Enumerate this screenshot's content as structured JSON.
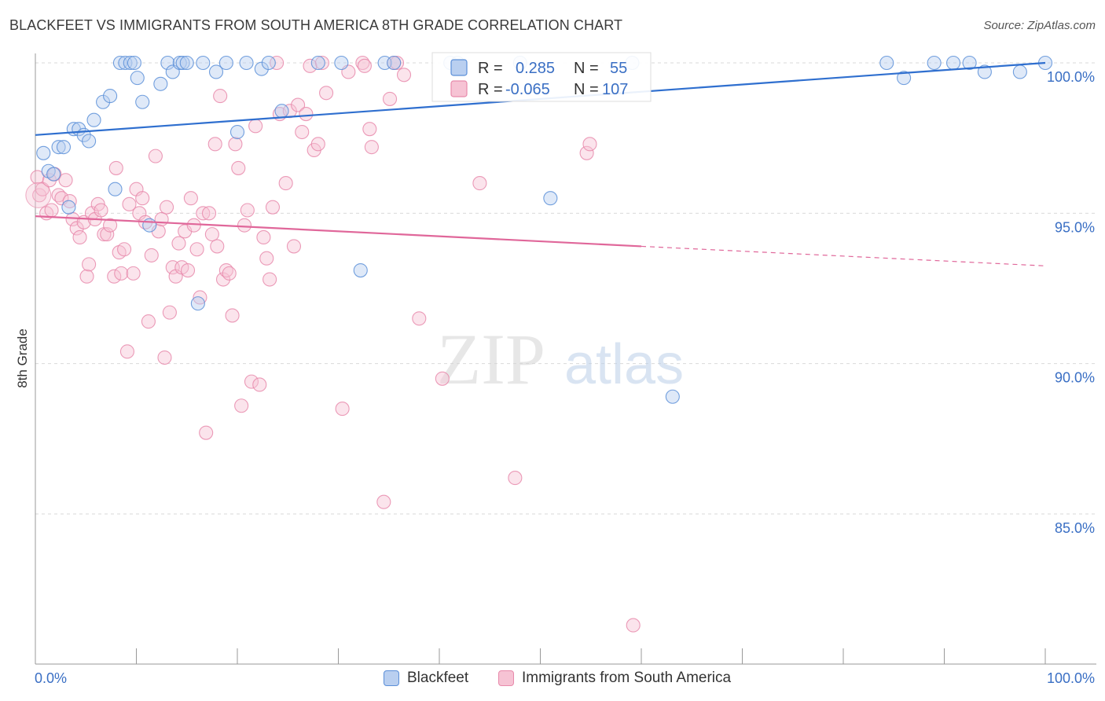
{
  "header": {
    "title": "BLACKFEET VS IMMIGRANTS FROM SOUTH AMERICA 8TH GRADE CORRELATION CHART",
    "source": "Source: ZipAtlas.com"
  },
  "watermark": {
    "zip": "ZIP",
    "atlas": "atlas"
  },
  "colors": {
    "blue": "#5b8fd8",
    "blue_fill": "#b9cff0",
    "blue_line": "#2f6fcf",
    "pink": "#e88aab",
    "pink_fill": "#f6c3d4",
    "pink_line": "#e0679a",
    "tick_label": "#3a6fc4",
    "grid": "#d9d9d9"
  },
  "legend_inline": {
    "rows": [
      {
        "r_label": "R = ",
        "r_value": "0.285",
        "n_label": "N = ",
        "n_value": "55"
      },
      {
        "r_label": "R = ",
        "r_value": "-0.065",
        "n_label": "N = ",
        "n_value": "107"
      }
    ]
  },
  "chart_data": {
    "type": "scatter",
    "title": "BLACKFEET VS IMMIGRANTS FROM SOUTH AMERICA 8TH GRADE CORRELATION CHART",
    "xlabel": "",
    "ylabel": "8th Grade",
    "xlim": [
      0,
      100
    ],
    "ylim": [
      80.5,
      100.7
    ],
    "x_tick_labels": [
      "0.0%",
      "100.0%"
    ],
    "y_ticks": [
      85,
      90,
      95,
      100
    ],
    "y_tick_labels": [
      "85.0%",
      "90.0%",
      "95.0%",
      "100.0%"
    ],
    "grid": true,
    "series": [
      {
        "name": "Blackfeet",
        "r": 0.285,
        "n": 55,
        "trend": {
          "x0": 0,
          "y0": 97.6,
          "x1": 100,
          "y1": 100.0
        },
        "points": [
          [
            0.8,
            97.0
          ],
          [
            1.3,
            96.4
          ],
          [
            1.8,
            96.3
          ],
          [
            2.3,
            97.2
          ],
          [
            2.8,
            97.2
          ],
          [
            3.3,
            95.2
          ],
          [
            3.8,
            97.8
          ],
          [
            4.3,
            97.8
          ],
          [
            4.8,
            97.6
          ],
          [
            5.3,
            97.4
          ],
          [
            5.8,
            98.1
          ],
          [
            6.7,
            98.7
          ],
          [
            7.4,
            98.9
          ],
          [
            7.9,
            95.8
          ],
          [
            8.4,
            100.0
          ],
          [
            8.9,
            100.0
          ],
          [
            9.4,
            100.0
          ],
          [
            10.1,
            99.5
          ],
          [
            10.6,
            98.7
          ],
          [
            11.3,
            94.6
          ],
          [
            9.8,
            100.0
          ],
          [
            12.4,
            99.3
          ],
          [
            13.1,
            100.0
          ],
          [
            13.6,
            99.7
          ],
          [
            14.3,
            100.0
          ],
          [
            14.6,
            100.0
          ],
          [
            15.0,
            100.0
          ],
          [
            16.1,
            92.0
          ],
          [
            16.6,
            100.0
          ],
          [
            17.9,
            99.7
          ],
          [
            18.9,
            100.0
          ],
          [
            20.0,
            97.7
          ],
          [
            20.9,
            100.0
          ],
          [
            22.4,
            99.8
          ],
          [
            23.1,
            100.0
          ],
          [
            24.4,
            98.4
          ],
          [
            28.0,
            100.0
          ],
          [
            30.3,
            100.0
          ],
          [
            32.2,
            93.1
          ],
          [
            34.6,
            100.0
          ],
          [
            35.5,
            100.0
          ],
          [
            41.1,
            100.0
          ],
          [
            41.8,
            100.0
          ],
          [
            48.0,
            100.0
          ],
          [
            51.0,
            95.5
          ],
          [
            59.1,
            100.0
          ],
          [
            63.1,
            88.9
          ],
          [
            84.3,
            100.0
          ],
          [
            86.0,
            99.5
          ],
          [
            89.0,
            100.0
          ],
          [
            90.9,
            100.0
          ],
          [
            92.5,
            100.0
          ],
          [
            94.0,
            99.7
          ],
          [
            97.5,
            99.7
          ],
          [
            100.0,
            100.0
          ]
        ]
      },
      {
        "name": "Immigrants from South America",
        "r": -0.065,
        "n": 107,
        "trend": {
          "x0": 0,
          "y0": 94.9,
          "x1": 60,
          "y1": 93.9,
          "dash_to_x": 100,
          "dash_to_y": 93.25
        },
        "points": [
          [
            0.2,
            96.2
          ],
          [
            0.4,
            95.6
          ],
          [
            0.7,
            95.8
          ],
          [
            1.1,
            95.0
          ],
          [
            1.4,
            96.1
          ],
          [
            1.6,
            95.1
          ],
          [
            1.9,
            96.3
          ],
          [
            2.3,
            95.6
          ],
          [
            2.6,
            95.5
          ],
          [
            3.0,
            96.1
          ],
          [
            3.4,
            95.4
          ],
          [
            3.7,
            94.8
          ],
          [
            4.1,
            94.5
          ],
          [
            4.4,
            94.2
          ],
          [
            4.8,
            94.7
          ],
          [
            5.1,
            92.9
          ],
          [
            5.3,
            93.3
          ],
          [
            5.6,
            95.0
          ],
          [
            5.9,
            94.8
          ],
          [
            6.2,
            95.3
          ],
          [
            6.5,
            95.1
          ],
          [
            6.8,
            94.3
          ],
          [
            7.1,
            94.3
          ],
          [
            7.4,
            94.6
          ],
          [
            7.8,
            92.9
          ],
          [
            8.0,
            96.5
          ],
          [
            8.3,
            93.7
          ],
          [
            8.5,
            93.0
          ],
          [
            8.8,
            93.8
          ],
          [
            9.1,
            90.4
          ],
          [
            9.3,
            95.3
          ],
          [
            9.7,
            93.0
          ],
          [
            10.0,
            95.8
          ],
          [
            10.3,
            95.0
          ],
          [
            10.6,
            95.5
          ],
          [
            10.9,
            94.7
          ],
          [
            11.2,
            91.4
          ],
          [
            11.5,
            93.6
          ],
          [
            11.9,
            96.9
          ],
          [
            12.2,
            94.4
          ],
          [
            12.5,
            94.8
          ],
          [
            12.8,
            90.2
          ],
          [
            13.0,
            95.2
          ],
          [
            13.3,
            91.7
          ],
          [
            13.6,
            93.2
          ],
          [
            13.9,
            92.9
          ],
          [
            14.2,
            94.0
          ],
          [
            14.5,
            93.2
          ],
          [
            14.8,
            94.4
          ],
          [
            15.1,
            93.1
          ],
          [
            15.4,
            95.5
          ],
          [
            15.7,
            94.6
          ],
          [
            16.0,
            93.8
          ],
          [
            16.3,
            92.2
          ],
          [
            16.6,
            95.0
          ],
          [
            16.9,
            87.7
          ],
          [
            17.2,
            95.0
          ],
          [
            17.5,
            94.3
          ],
          [
            17.8,
            97.3
          ],
          [
            18.0,
            93.9
          ],
          [
            18.3,
            98.9
          ],
          [
            18.6,
            92.8
          ],
          [
            18.9,
            93.1
          ],
          [
            19.2,
            93.0
          ],
          [
            19.5,
            91.6
          ],
          [
            19.8,
            97.3
          ],
          [
            20.1,
            96.5
          ],
          [
            20.4,
            88.6
          ],
          [
            20.7,
            94.6
          ],
          [
            21.0,
            95.1
          ],
          [
            21.4,
            89.4
          ],
          [
            21.8,
            97.9
          ],
          [
            22.2,
            89.3
          ],
          [
            22.6,
            94.2
          ],
          [
            22.9,
            93.5
          ],
          [
            23.2,
            92.8
          ],
          [
            23.5,
            95.2
          ],
          [
            23.9,
            100.0
          ],
          [
            24.2,
            98.3
          ],
          [
            24.8,
            96.0
          ],
          [
            25.2,
            98.4
          ],
          [
            25.6,
            93.9
          ],
          [
            26.0,
            98.6
          ],
          [
            26.4,
            97.7
          ],
          [
            26.8,
            98.3
          ],
          [
            27.2,
            99.9
          ],
          [
            27.6,
            97.1
          ],
          [
            28.0,
            97.3
          ],
          [
            28.4,
            100.0
          ],
          [
            28.8,
            99.0
          ],
          [
            30.4,
            88.5
          ],
          [
            31.0,
            99.7
          ],
          [
            32.4,
            100.0
          ],
          [
            32.6,
            99.9
          ],
          [
            33.1,
            97.8
          ],
          [
            33.3,
            97.2
          ],
          [
            34.5,
            85.4
          ],
          [
            35.1,
            98.8
          ],
          [
            35.5,
            100.0
          ],
          [
            35.8,
            100.0
          ],
          [
            36.5,
            99.6
          ],
          [
            38.0,
            91.5
          ],
          [
            40.3,
            89.5
          ],
          [
            44.0,
            96.0
          ],
          [
            47.5,
            86.2
          ],
          [
            54.6,
            97.0
          ],
          [
            54.9,
            97.3
          ],
          [
            59.2,
            81.3
          ]
        ]
      }
    ]
  },
  "bottom_legend": [
    {
      "label": "Blackfeet"
    },
    {
      "label": "Immigrants from South America"
    }
  ]
}
